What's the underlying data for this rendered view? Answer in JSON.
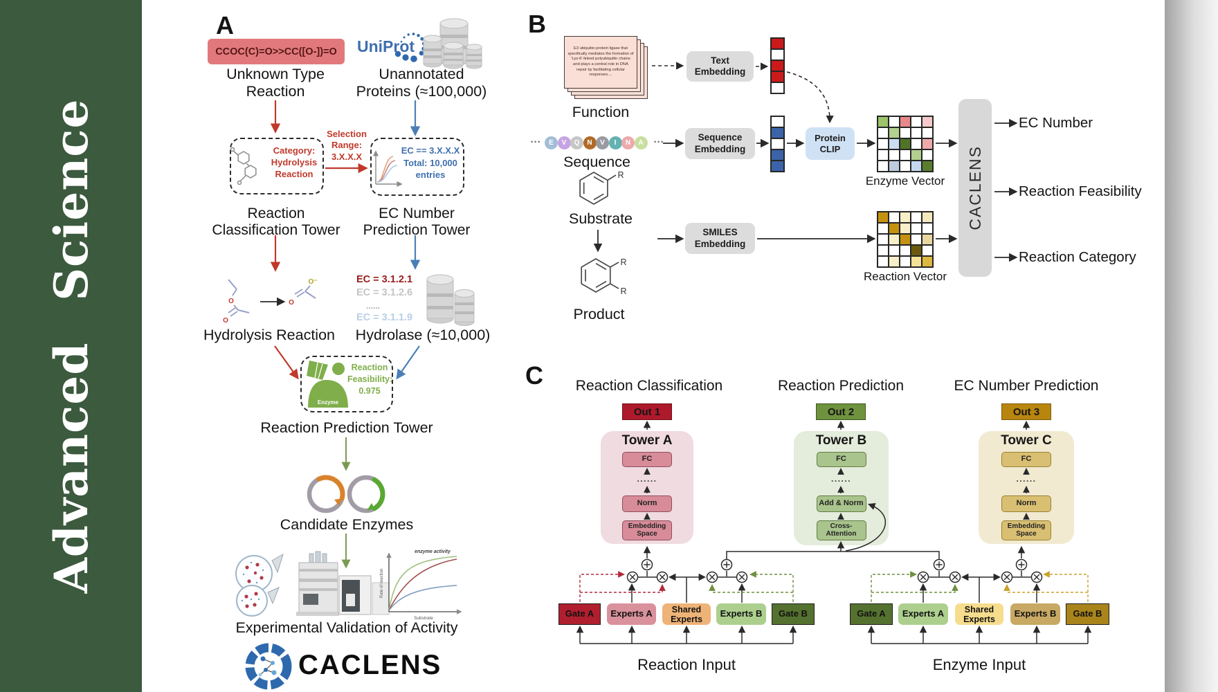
{
  "sidebar": {
    "title": "Advanced Science",
    "bg": "#3c5a3e"
  },
  "panelA": {
    "label": "A",
    "smiles": "CCOC(C)=O>>CC([O-])=O",
    "unknown_caption": "Unknown Type\nReaction",
    "uniprot": "UniProt",
    "unannotated_caption": "Unannotated\nProteins (≈100,000)",
    "selection_label": "Selection\nRange:\n3.X.X.X",
    "category_label": "Category:\nHydrolysis\nReaction",
    "ec_range_label": "EC == 3.X.X.X\nTotal: 10,000\nentries",
    "reaction_tower_caption": "Reaction\nClassification Tower",
    "ec_tower_caption": "EC Number\nPrediction Tower",
    "hydrolysis_caption": "Hydrolysis Reaction",
    "ec_list": [
      "EC = 3.1.2.1",
      "EC = 3.1.2.6",
      "......",
      "EC = 3.1.1.9"
    ],
    "hydrolase_caption": "Hydrolase (≈10,000)",
    "enzyme_label": "Enzyme",
    "feasibility_label": "Reaction\nFeasibility:\n0.975",
    "prediction_tower_caption": "Reaction Prediction Tower",
    "candidate_caption": "Candidate Enzymes",
    "validation_caption": "Experimental Validation of Activity",
    "logo_text": "CACLENS",
    "atom_o": "O",
    "atom_o_minus": "O⁻",
    "miniplot": {
      "ylabel": "Rate of reaction",
      "xlabel": "Substrate",
      "annotation": "enzyme activity"
    }
  },
  "panelB": {
    "label": "B",
    "function_card": "E3 ubiquitin-protein ligase that specifically mediates the formation of 'Lys-6'-linked polyubiquitin chains and plays a central role in DNA repair by facilitating cellular responses....",
    "function_caption": "Function",
    "ellipsis": "···",
    "sequence_residues": [
      {
        "letter": "E",
        "color": "#a3bdd6"
      },
      {
        "letter": "V",
        "color": "#c7a3e3"
      },
      {
        "letter": "Q",
        "color": "#c6c6c6"
      },
      {
        "letter": "N",
        "color": "#b06a28"
      },
      {
        "letter": "V",
        "color": "#9a9aa2"
      },
      {
        "letter": "I",
        "color": "#64b2b2"
      },
      {
        "letter": "N",
        "color": "#ecaaaa"
      },
      {
        "letter": "A",
        "color": "#c8df9f"
      }
    ],
    "sequence_caption": "Sequence",
    "text_embedding": "Text\nEmbedding",
    "sequence_embedding": "Sequence\nEmbedding",
    "protein_clip": "Protein\nCLIP",
    "smiles_embedding": "SMILES\nEmbedding",
    "substrate_caption": "Substrate",
    "product_caption": "Product",
    "r_label": "R",
    "enzyme_vector_caption": "Enzyme Vector",
    "reaction_vector_caption": "Reaction Vector",
    "caclens_label": "CACLENS",
    "outputs": [
      "EC Number",
      "Reaction Feasibility",
      "Reaction Category"
    ],
    "text_vector_cells": [
      "#cb1a1a",
      "#ffffff",
      "#cb1a1a",
      "#cb1a1a",
      "#ffffff"
    ],
    "seq_vector_cells": [
      "#ffffff",
      "#3b63a8",
      "#ffffff",
      "#3b63a8",
      "#3b63a8"
    ],
    "enzyme_vector_cells": [
      "#9dc36b",
      "#ffffff",
      "#e8888a",
      "#ffffff",
      "#f5c9cb",
      "#ffffff",
      "#b2d08e",
      "#ffffff",
      "#ffffff",
      "#ffffff",
      "#ffffff",
      "#ccdcf0",
      "#4f7428",
      "#ffffff",
      "#efa9ab",
      "#ffffff",
      "#ffffff",
      "#ffffff",
      "#b2d08e",
      "#ffffff",
      "#ffffff",
      "#bdcbdd",
      "#ffffff",
      "#c3d8ef",
      "#5a7d2e"
    ],
    "reaction_vector_cells": [
      "#c59210",
      "#ffffff",
      "#f7efc7",
      "#ffffff",
      "#f3e9bd",
      "#ffffff",
      "#c59210",
      "#f7efc7",
      "#ffffff",
      "#ffffff",
      "#ffffff",
      "#f7efc7",
      "#c59210",
      "#ffffff",
      "#e8d79e",
      "#ffffff",
      "#ffffff",
      "#ffffff",
      "#6b5a0e",
      "#ffffff",
      "#ffffff",
      "#f7efc7",
      "#ffffff",
      "#f3e198",
      "#dcb83f"
    ]
  },
  "panelC": {
    "label": "C",
    "column_titles": [
      "Reaction Classification",
      "Reaction Prediction",
      "EC Number Prediction"
    ],
    "out_boxes": [
      {
        "label": "Out 1",
        "bg": "#ae1a2b",
        "border": "#6d0f1c"
      },
      {
        "label": "Out 2",
        "bg": "#6f923f",
        "border": "#3f551c"
      },
      {
        "label": "Out 3",
        "bg": "#b8860f",
        "border": "#7c5c0a"
      }
    ],
    "towers": [
      {
        "title": "Tower A",
        "fc": "FC",
        "dots": "......",
        "mid": "Norm",
        "bottom": "Embedding\nSpace",
        "bg": "#f0dbe0",
        "box_bg": "#d88b98",
        "box_border": "#8f4f5b"
      },
      {
        "title": "Tower B",
        "fc": "FC",
        "dots": "......",
        "mid": "Add & Norm",
        "bottom": "Cross-\nAttention",
        "bg": "#e4ecdb",
        "box_bg": "#a9c48c",
        "box_border": "#5f7c44"
      },
      {
        "title": "Tower C",
        "fc": "FC",
        "dots": "......",
        "mid": "Norm",
        "bottom": "Embedding\nSpace",
        "bg": "#f1ead1",
        "box_bg": "#d9bf72",
        "box_border": "#9a8033"
      }
    ],
    "groups": [
      {
        "caption": "Reaction Input",
        "boxes": [
          {
            "label": "Gate A",
            "bg": "#b01f2e"
          },
          {
            "label": "Experts A",
            "bg": "#d9919c"
          },
          {
            "label": "Shared\nExperts",
            "bg": "#eeb377"
          },
          {
            "label": "Experts B",
            "bg": "#accf8e"
          },
          {
            "label": "Gate B",
            "bg": "#55712f"
          }
        ]
      },
      {
        "caption": "Enzyme Input",
        "boxes": [
          {
            "label": "Gate A",
            "bg": "#55712f"
          },
          {
            "label": "Experts A",
            "bg": "#accf8e"
          },
          {
            "label": "Shared\nExperts",
            "bg": "#f6dd8d"
          },
          {
            "label": "Experts B",
            "bg": "#c8a963"
          },
          {
            "label": "Gate B",
            "bg": "#a9841b"
          }
        ]
      }
    ]
  }
}
